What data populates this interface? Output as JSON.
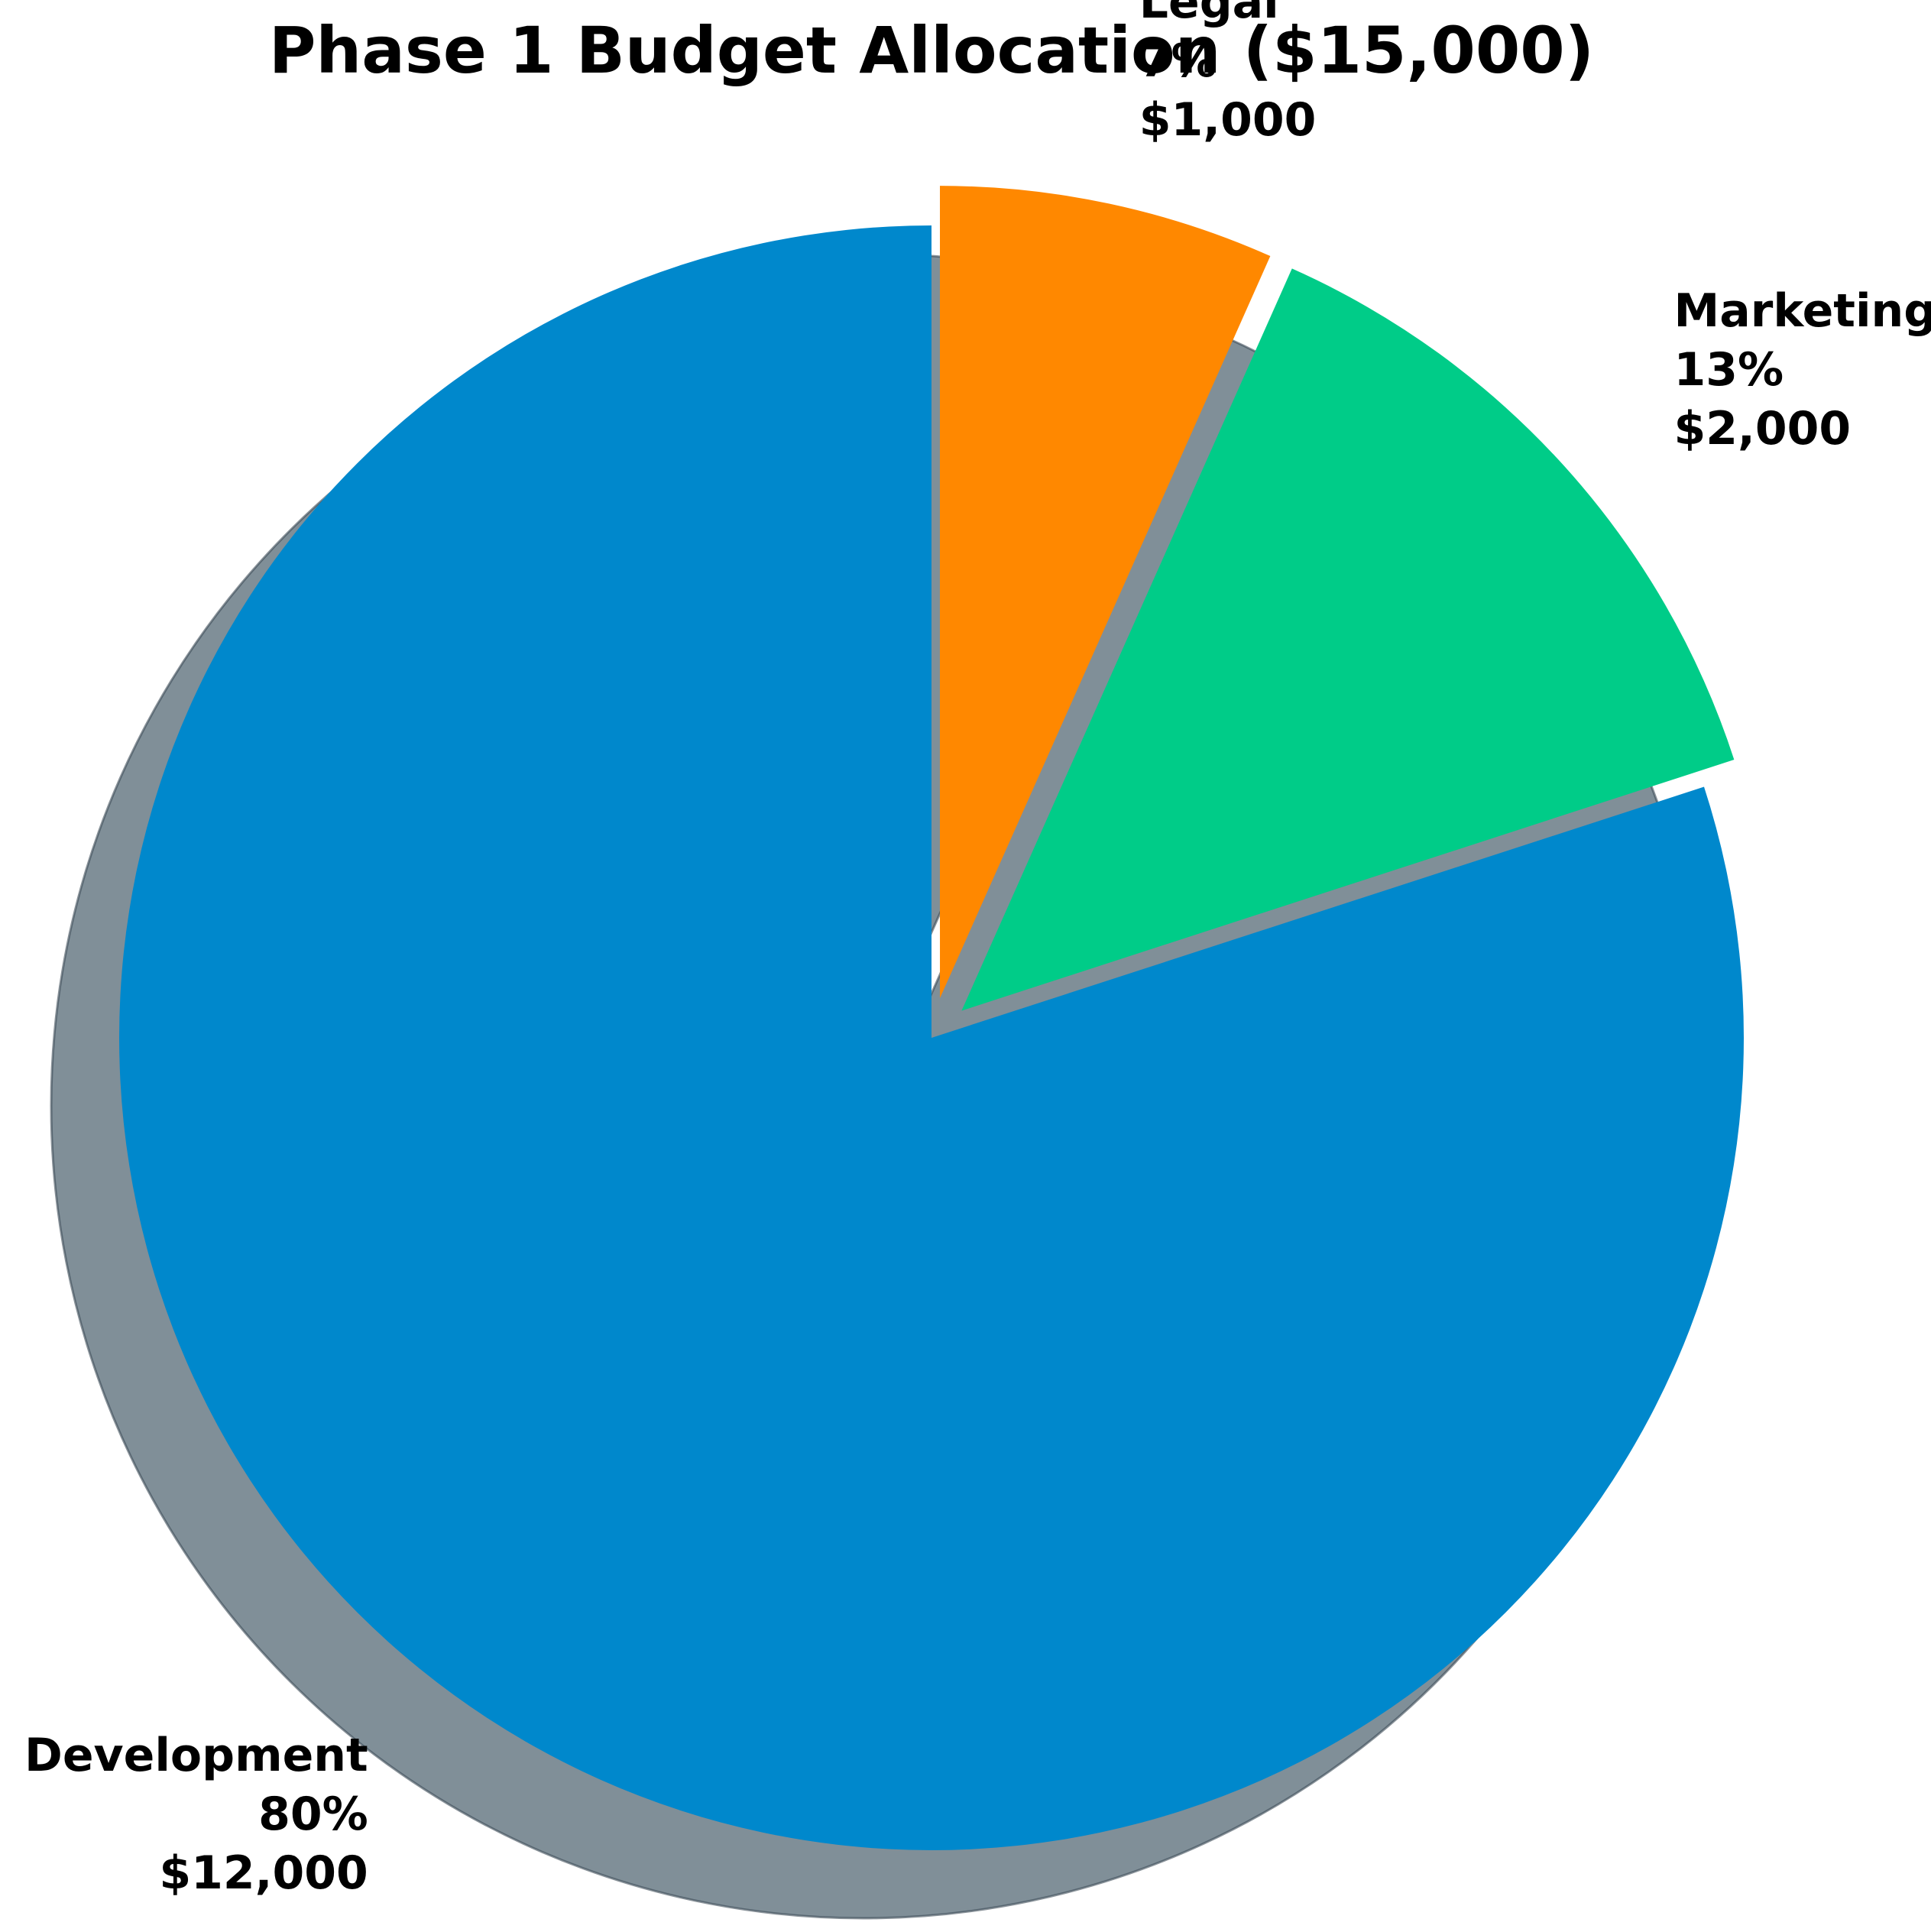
{
  "chart_data": {
    "type": "pie",
    "title": "Phase 1 Budget Allocation ($15,000)",
    "slices": [
      {
        "label": "Development",
        "value": 12000,
        "percent_label": "80%",
        "amount_label": "$12,000",
        "color": "#0088cc"
      },
      {
        "label": "Marketing",
        "value": 2000,
        "percent_label": "13%",
        "amount_label": "$2,000",
        "color": "#00cc88"
      },
      {
        "label": "Legal",
        "value": 1000,
        "percent_label": "7%",
        "amount_label": "$1,000",
        "color": "#ff8800"
      }
    ],
    "shadow_color": "#808f98",
    "exploded": [
      "Marketing",
      "Legal"
    ],
    "legend": "none"
  }
}
